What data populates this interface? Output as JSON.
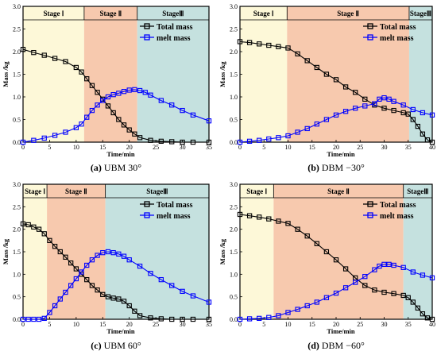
{
  "chart_data": [
    {
      "type": "line",
      "caption_label": "(a)",
      "caption_text": "UBM 30°",
      "xlabel": "Time/min",
      "ylabel": "Mass /kg",
      "xlim": [
        0,
        35
      ],
      "ylim": [
        0,
        3.0
      ],
      "xticks": [
        "0",
        "5",
        "10",
        "15",
        "20",
        "25",
        "30",
        "35"
      ],
      "yticks": [
        "0.0",
        "0.5",
        "1.0",
        "1.5",
        "2.0",
        "2.5",
        "3.0"
      ],
      "legend_position": "top-right",
      "stages": [
        {
          "label": "Stage Ⅰ",
          "start": 0,
          "end": 11.5,
          "color": "#fdf8d8"
        },
        {
          "label": "Stage Ⅱ",
          "start": 11.5,
          "end": 21.5,
          "color": "#f7c9ae"
        },
        {
          "label": "StageⅢ",
          "start": 21.5,
          "end": 35,
          "color": "#c5e1df"
        }
      ],
      "series": [
        {
          "name": "Total mass",
          "color": "#000000",
          "x": [
            0,
            2,
            4,
            6,
            8,
            10,
            11,
            12,
            13,
            14,
            15,
            16,
            17,
            18,
            19,
            20,
            21,
            22,
            24,
            26,
            28,
            30,
            32,
            35
          ],
          "y": [
            2.05,
            1.98,
            1.92,
            1.85,
            1.78,
            1.65,
            1.55,
            1.4,
            1.25,
            1.1,
            0.95,
            0.8,
            0.65,
            0.5,
            0.38,
            0.27,
            0.18,
            0.1,
            0.04,
            0.02,
            0.01,
            0.0,
            0.0,
            0.0
          ]
        },
        {
          "name": "melt mass",
          "color": "#0000ff",
          "x": [
            0,
            2,
            4,
            6,
            8,
            10,
            11,
            12,
            13,
            14,
            15,
            16,
            17,
            18,
            19,
            20,
            21,
            22,
            23,
            24,
            26,
            28,
            30,
            32,
            35
          ],
          "y": [
            0.0,
            0.04,
            0.09,
            0.15,
            0.22,
            0.32,
            0.4,
            0.55,
            0.7,
            0.82,
            0.92,
            1.0,
            1.05,
            1.08,
            1.12,
            1.15,
            1.16,
            1.14,
            1.1,
            1.04,
            0.92,
            0.82,
            0.7,
            0.6,
            0.47
          ]
        }
      ]
    },
    {
      "type": "line",
      "caption_label": "(b)",
      "caption_text": "DBM −30°",
      "xlabel": "Time/min",
      "ylabel": "Mass /kg",
      "xlim": [
        0,
        40
      ],
      "ylim": [
        0,
        3.0
      ],
      "xticks": [
        "0",
        "5",
        "10",
        "15",
        "20",
        "25",
        "30",
        "35",
        "40"
      ],
      "yticks": [
        "0.0",
        "0.5",
        "1.0",
        "1.5",
        "2.0",
        "2.5",
        "3.0"
      ],
      "legend_position": "top-right",
      "stages": [
        {
          "label": "Stage Ⅰ",
          "start": 0,
          "end": 9.8,
          "color": "#fdf8d8"
        },
        {
          "label": "Stage Ⅱ",
          "start": 9.8,
          "end": 35.2,
          "color": "#f7c9ae"
        },
        {
          "label": "StageⅢ",
          "start": 35.2,
          "end": 40,
          "color": "#c5e1df"
        }
      ],
      "series": [
        {
          "name": "Total mass",
          "color": "#000000",
          "x": [
            0,
            2,
            4,
            6,
            8,
            10,
            12,
            14,
            16,
            18,
            20,
            22,
            24,
            26,
            28,
            30,
            32,
            34,
            35,
            36,
            37,
            38,
            39,
            40
          ],
          "y": [
            2.22,
            2.2,
            2.17,
            2.14,
            2.11,
            2.08,
            1.95,
            1.8,
            1.65,
            1.5,
            1.38,
            1.22,
            1.1,
            0.95,
            0.82,
            0.75,
            0.7,
            0.65,
            0.62,
            0.5,
            0.35,
            0.18,
            0.05,
            0.0
          ]
        },
        {
          "name": "melt mass",
          "color": "#0000ff",
          "x": [
            0,
            2,
            4,
            6,
            8,
            10,
            12,
            14,
            16,
            18,
            20,
            22,
            24,
            26,
            28,
            29,
            30,
            31,
            32,
            34,
            36,
            38,
            40
          ],
          "y": [
            0.0,
            0.02,
            0.04,
            0.07,
            0.1,
            0.14,
            0.22,
            0.3,
            0.4,
            0.5,
            0.6,
            0.68,
            0.75,
            0.8,
            0.85,
            0.95,
            0.98,
            0.95,
            0.9,
            0.82,
            0.72,
            0.65,
            0.6
          ]
        }
      ]
    },
    {
      "type": "line",
      "caption_label": "(c)",
      "caption_text": "UBM 60°",
      "xlabel": "Time/min",
      "ylabel": "Mass /kg",
      "xlim": [
        0,
        35
      ],
      "ylim": [
        0,
        3.0
      ],
      "xticks": [
        "0",
        "5",
        "10",
        "15",
        "20",
        "25",
        "30",
        "35"
      ],
      "yticks": [
        "0.0",
        "0.5",
        "1.0",
        "1.5",
        "2.0",
        "2.5",
        "3.0"
      ],
      "legend_position": "top-right",
      "stages": [
        {
          "label": "Stage Ⅰ",
          "start": 0,
          "end": 4.5,
          "color": "#fdf8d8"
        },
        {
          "label": "Stage Ⅱ",
          "start": 4.5,
          "end": 15.5,
          "color": "#f7c9ae"
        },
        {
          "label": "StageⅢ",
          "start": 15.5,
          "end": 35,
          "color": "#c5e1df"
        }
      ],
      "series": [
        {
          "name": "Total mass",
          "color": "#000000",
          "x": [
            0,
            1,
            2,
            3,
            4,
            5,
            6,
            7,
            8,
            9,
            10,
            11,
            12,
            13,
            14,
            15,
            16,
            17,
            18,
            19,
            20,
            21,
            22,
            24,
            26,
            28,
            30,
            32,
            35
          ],
          "y": [
            2.12,
            2.1,
            2.05,
            2.0,
            1.9,
            1.75,
            1.62,
            1.5,
            1.38,
            1.25,
            1.12,
            1.0,
            0.88,
            0.75,
            0.65,
            0.55,
            0.5,
            0.47,
            0.45,
            0.4,
            0.3,
            0.18,
            0.08,
            0.03,
            0.01,
            0.0,
            0.0,
            0.0,
            0.0
          ]
        },
        {
          "name": "melt mass",
          "color": "#0000ff",
          "x": [
            0,
            1,
            2,
            3,
            4,
            5,
            6,
            7,
            8,
            9,
            10,
            11,
            12,
            13,
            14,
            15,
            16,
            17,
            18,
            19,
            20,
            22,
            24,
            26,
            28,
            30,
            32,
            35
          ],
          "y": [
            0.0,
            0.0,
            0.0,
            0.0,
            0.02,
            0.15,
            0.3,
            0.45,
            0.6,
            0.75,
            0.9,
            1.05,
            1.2,
            1.32,
            1.42,
            1.48,
            1.5,
            1.48,
            1.45,
            1.4,
            1.32,
            1.18,
            1.02,
            0.88,
            0.75,
            0.62,
            0.52,
            0.38
          ]
        }
      ]
    },
    {
      "type": "line",
      "caption_label": "(d)",
      "caption_text": "DBM −60°",
      "xlabel": "Time/min",
      "ylabel": "Mass /kg",
      "xlim": [
        0,
        40
      ],
      "ylim": [
        0,
        3.0
      ],
      "xticks": [
        "0",
        "5",
        "10",
        "15",
        "20",
        "25",
        "30",
        "35",
        "40"
      ],
      "yticks": [
        "0.0",
        "0.5",
        "1.0",
        "1.5",
        "2.0",
        "2.5",
        "3.0"
      ],
      "legend_position": "top-right",
      "stages": [
        {
          "label": "Stage Ⅰ",
          "start": 0,
          "end": 7,
          "color": "#fdf8d8"
        },
        {
          "label": "Stage Ⅱ",
          "start": 7,
          "end": 34,
          "color": "#f7c9ae"
        },
        {
          "label": "StageⅢ",
          "start": 34,
          "end": 40,
          "color": "#c5e1df"
        }
      ],
      "series": [
        {
          "name": "Total mass",
          "color": "#000000",
          "x": [
            0,
            2,
            4,
            6,
            8,
            10,
            12,
            14,
            16,
            18,
            20,
            22,
            24,
            26,
            28,
            30,
            32,
            34,
            35,
            36,
            37,
            38,
            39,
            40
          ],
          "y": [
            2.33,
            2.3,
            2.27,
            2.23,
            2.18,
            2.13,
            2.0,
            1.85,
            1.68,
            1.5,
            1.32,
            1.12,
            0.92,
            0.75,
            0.65,
            0.6,
            0.57,
            0.53,
            0.48,
            0.38,
            0.25,
            0.12,
            0.03,
            0.0
          ]
        },
        {
          "name": "melt mass",
          "color": "#0000ff",
          "x": [
            0,
            2,
            4,
            6,
            8,
            10,
            12,
            14,
            16,
            18,
            20,
            22,
            24,
            26,
            28,
            29,
            30,
            31,
            32,
            34,
            36,
            38,
            40
          ],
          "y": [
            0.0,
            0.01,
            0.02,
            0.04,
            0.08,
            0.15,
            0.22,
            0.3,
            0.38,
            0.48,
            0.58,
            0.7,
            0.82,
            0.95,
            1.1,
            1.18,
            1.22,
            1.22,
            1.2,
            1.15,
            1.05,
            0.98,
            0.92
          ]
        }
      ]
    }
  ]
}
